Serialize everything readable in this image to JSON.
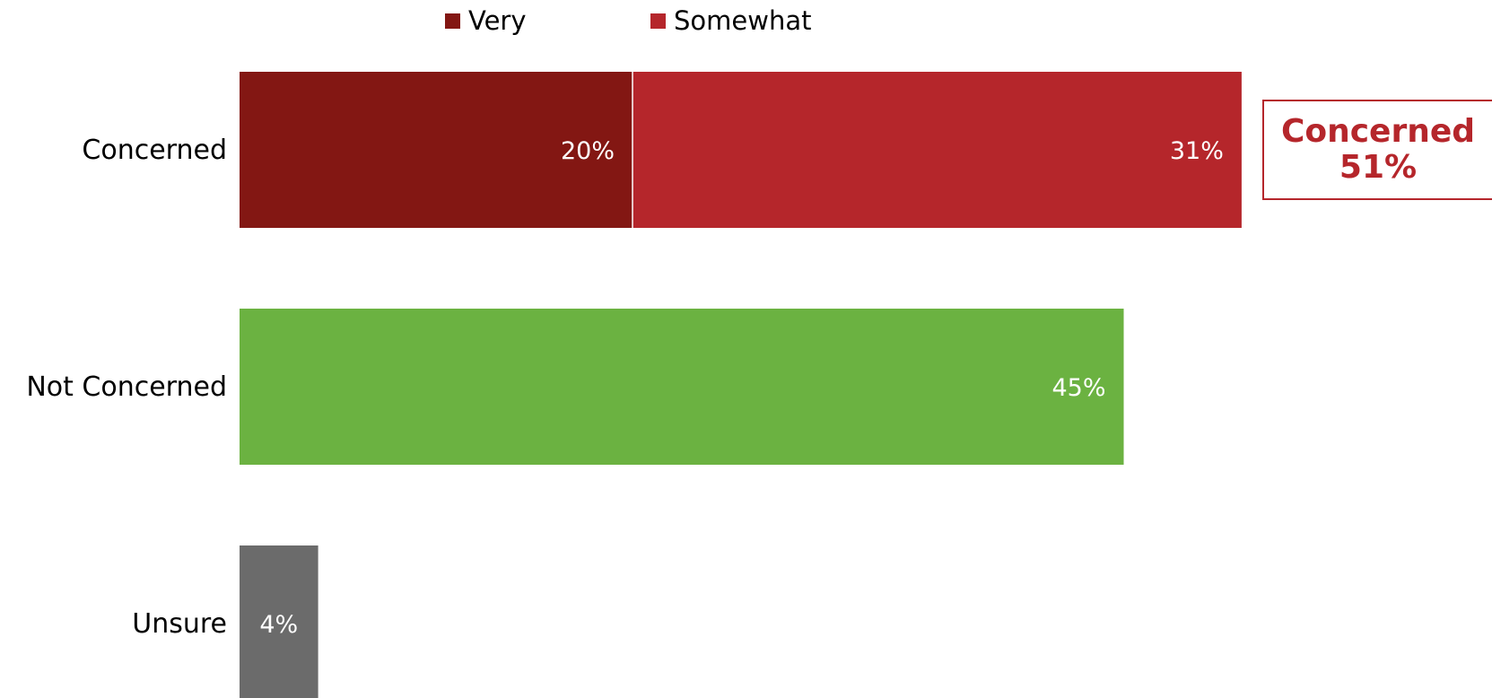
{
  "chart_data": {
    "type": "bar",
    "orientation": "horizontal",
    "stacked": true,
    "title": "",
    "xlabel": "",
    "ylabel": "",
    "xlim": [
      0,
      55
    ],
    "grid": false,
    "legend": "top-center",
    "categories": [
      "Concerned",
      "Not Concerned",
      "Unsure"
    ],
    "legend_entries": [
      {
        "name": "Very",
        "color": "#831713"
      },
      {
        "name": "Somewhat",
        "color": "#b5262b"
      }
    ],
    "bars": [
      {
        "category": "Concerned",
        "segments": [
          {
            "series": "Very",
            "value": 20,
            "label": "20%",
            "color": "#831713"
          },
          {
            "series": "Somewhat",
            "value": 31,
            "label": "31%",
            "color": "#b5262b"
          }
        ]
      },
      {
        "category": "Not Concerned",
        "segments": [
          {
            "value": 45,
            "label": "45%",
            "color": "#6bb241"
          }
        ]
      },
      {
        "category": "Unsure",
        "segments": [
          {
            "value": 4,
            "label": "4%",
            "color": "#6b6b6b"
          }
        ]
      }
    ],
    "annotation": {
      "line1": "Concerned",
      "line2": "51%",
      "color": "#b5262b"
    }
  }
}
